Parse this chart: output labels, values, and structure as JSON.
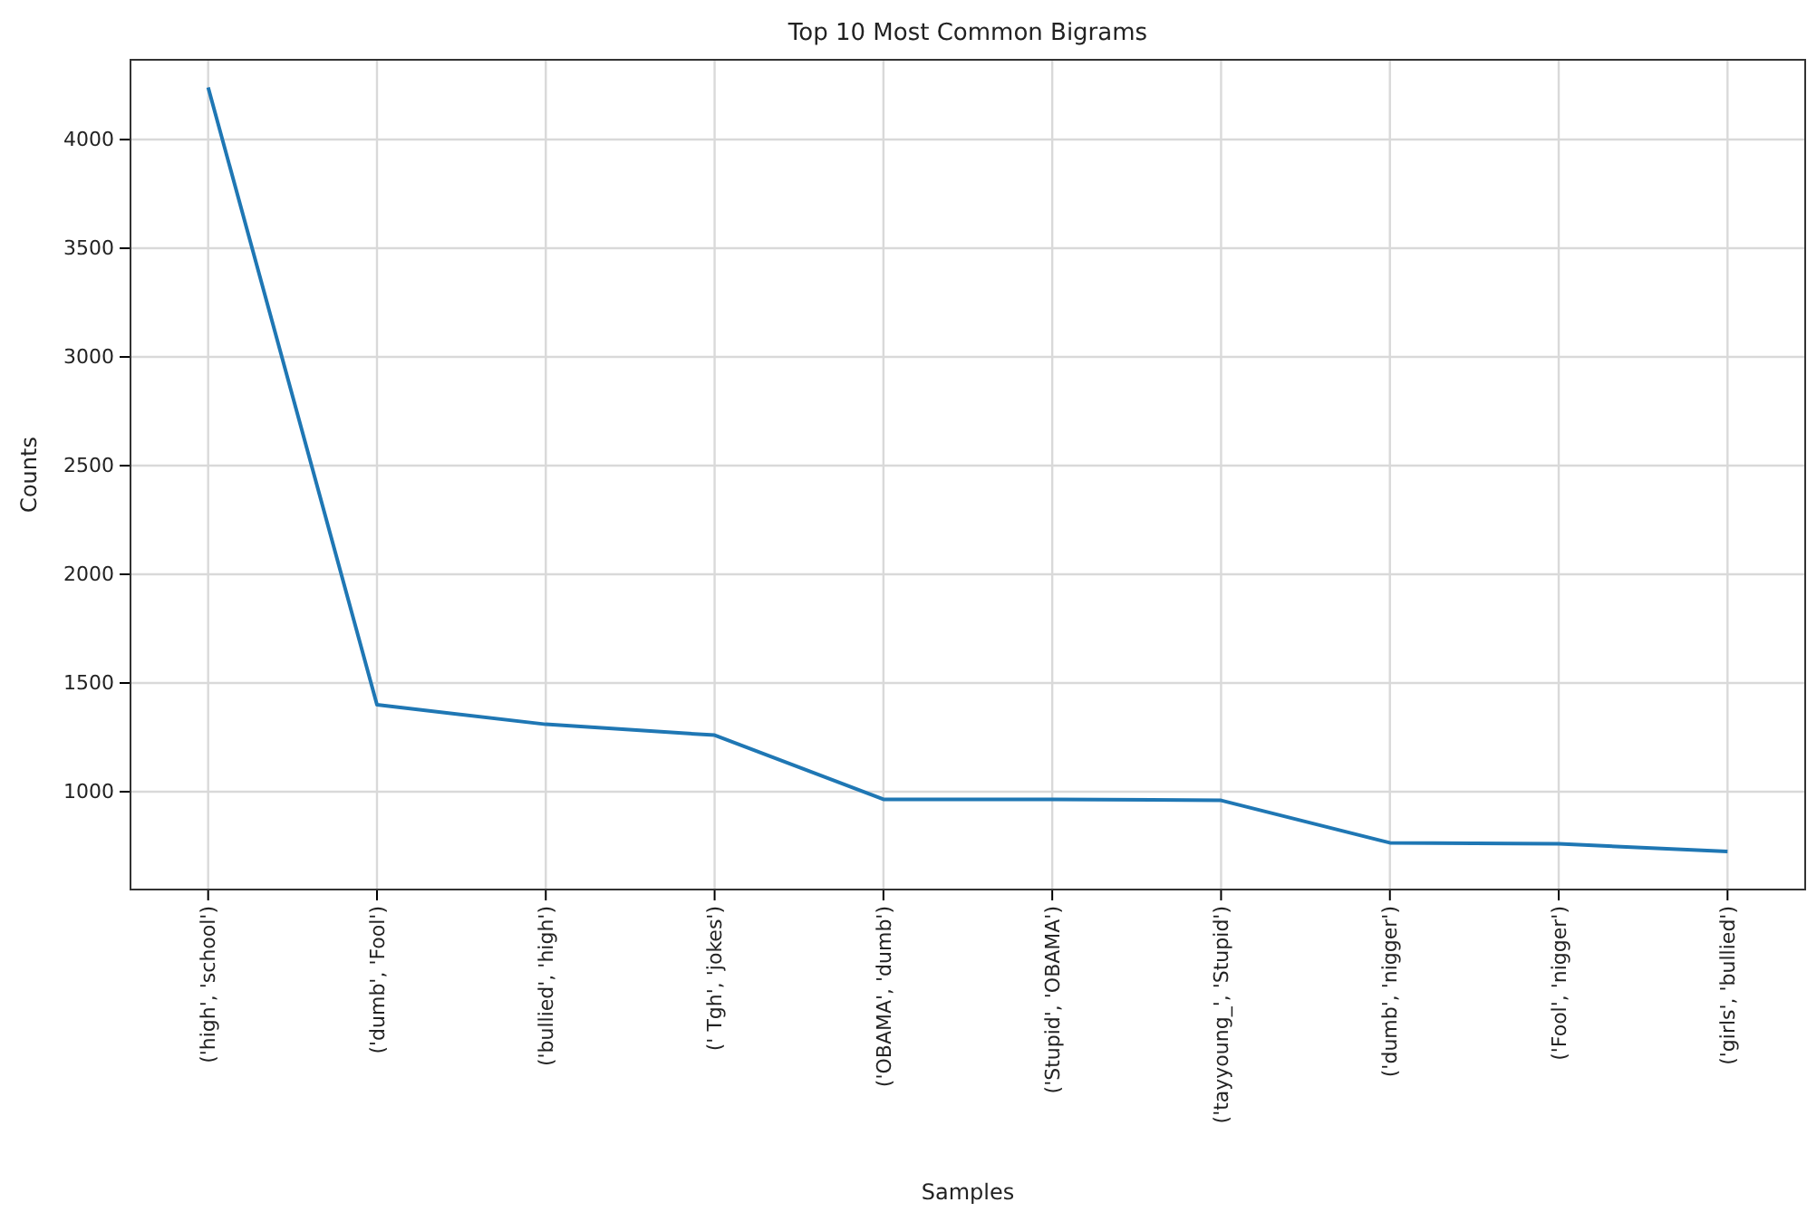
{
  "chart_data": {
    "type": "line",
    "title": "Top 10 Most Common Bigrams",
    "xlabel": "Samples",
    "ylabel": "Counts",
    "categories": [
      "('high', 'school')",
      "('dumb', 'Fool')",
      "('bullied', 'high')",
      "(' Tgh', 'jokes')",
      "('OBAMA', 'dumb')",
      "('Stupid', 'OBAMA')",
      "('tayyoung_', 'Stupid')",
      "('dumb', 'nigger')",
      "('Fool', 'nigger')",
      "('girls', 'bullied')"
    ],
    "series": [
      {
        "color": "#1f77b4",
        "values": [
          4240,
          1400,
          1310,
          1260,
          965,
          965,
          960,
          765,
          760,
          725
        ]
      }
    ],
    "ylim": [
      550,
      4367
    ],
    "yticks": [
      1000,
      1500,
      2000,
      2500,
      3000,
      3500,
      4000
    ],
    "grid": true,
    "marker": "none",
    "line_style": "solid"
  }
}
